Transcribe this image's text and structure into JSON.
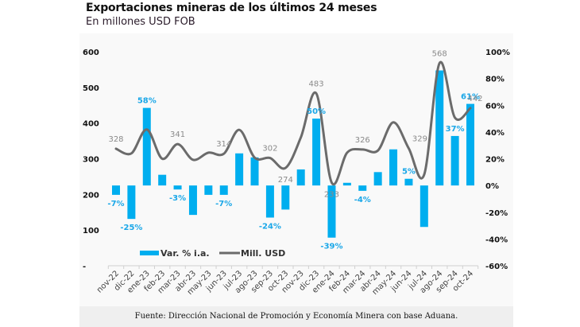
{
  "header": {
    "title": "Exportaciones mineras de los últimos 24 meses",
    "subtitle": "En millones USD FOB"
  },
  "source": "Fuente: Dirección Nacional de Promoción y Economía Minera con base Aduana.",
  "colors": {
    "bar": "#00aeef",
    "bar_label": "#1aa7e8",
    "line": "#6b6b6b",
    "line_label": "#8a8a8a"
  },
  "chart_data": {
    "type": "bar+line",
    "title": "Exportaciones mineras de los últimos 24 meses",
    "subtitle": "En millones USD FOB",
    "categories": [
      "nov-22",
      "dic-22",
      "ene-23",
      "feb-23",
      "mar-23",
      "abr-23",
      "may-23",
      "jun-23",
      "jul-23",
      "ago-23",
      "sep-23",
      "oct-23",
      "nov-23",
      "dic-23",
      "ene-24",
      "feb-24",
      "mar-24",
      "abr-24",
      "may-24",
      "jun-24",
      "jul-24",
      "ago-24",
      "sep-24",
      "oct-24"
    ],
    "series": [
      {
        "name": "Var. % i.a.",
        "type": "bar",
        "axis": "right",
        "unit": "%",
        "values": [
          -7,
          -25,
          58,
          8,
          -3,
          -22,
          -7,
          -7,
          24,
          21,
          -24,
          -18,
          12,
          50,
          -39,
          2,
          -4,
          10,
          27,
          5,
          -31,
          86,
          37,
          61
        ],
        "labels": {
          "0": "-7%",
          "1": "-25%",
          "2": "58%",
          "4": "-3%",
          "7": "-7%",
          "10": "-24%",
          "13": "50%",
          "14": "-39%",
          "16": "-4%",
          "19": "5%",
          "22": "37%",
          "23": "61%"
        }
      },
      {
        "name": "Mill. USD",
        "type": "line",
        "axis": "left",
        "values": [
          328,
          315,
          382,
          300,
          341,
          297,
          317,
          314,
          381,
          303,
          302,
          274,
          360,
          483,
          233,
          317,
          326,
          323,
          402,
          329,
          255,
          568,
          415,
          442
        ],
        "labels": {
          "0": "328",
          "4": "341",
          "7": "314",
          "10": "302",
          "11": "274",
          "13": "483",
          "14": "233",
          "16": "326",
          "19": "329",
          "21": "568",
          "23": "442"
        }
      }
    ],
    "left_axis": {
      "ticks": [
        "-",
        "100",
        "200",
        "300",
        "400",
        "500",
        "600"
      ],
      "ylim": [
        0,
        600
      ]
    },
    "right_axis": {
      "ticks": [
        "-60%",
        "-40%",
        "-20%",
        "0%",
        "20%",
        "40%",
        "60%",
        "80%",
        "100%"
      ],
      "ylim": [
        -60,
        100
      ]
    },
    "xlabel": "",
    "ylabel": "",
    "legend": {
      "position": "bottom-left",
      "entries": [
        "Var. % i.a.",
        "Mill. USD"
      ]
    },
    "grid": false
  }
}
